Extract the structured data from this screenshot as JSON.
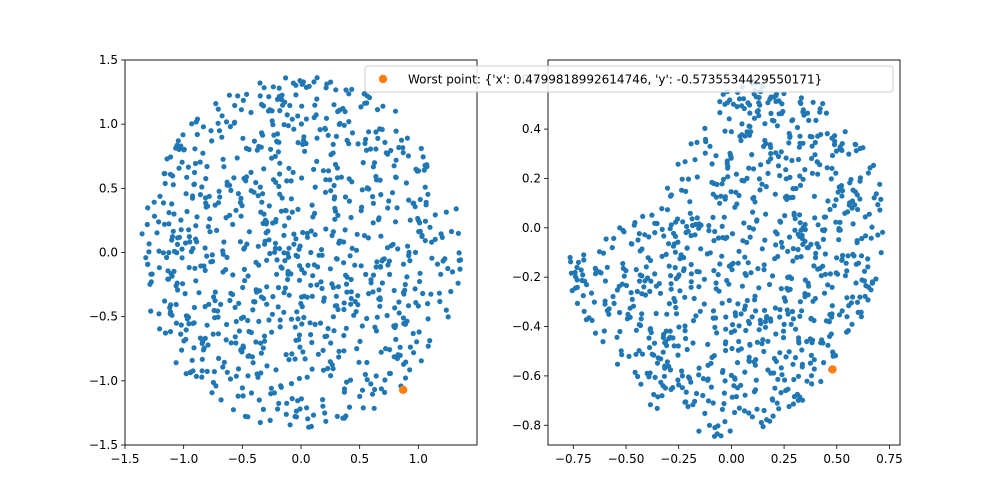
{
  "chart_data": [
    {
      "type": "scatter",
      "title": "",
      "xlabel": "",
      "ylabel": "",
      "xlim": [
        -1.5,
        1.5
      ],
      "ylim": [
        -1.5,
        1.5
      ],
      "xticks": [
        "-1.5",
        "-1.0",
        "-0.5",
        "0.0",
        "0.5",
        "1.0"
      ],
      "yticks": [
        "-1.5",
        "-1.0",
        "-0.5",
        "0.0",
        "0.5",
        "1.0",
        "1.5"
      ],
      "grid": false,
      "series": [
        {
          "shape": "disk",
          "radius": 1.37,
          "count": 900,
          "color": "#1f77b4",
          "description": "approximately uniform random cloud filling a disk of radius ~1.37 centered at origin"
        },
        {
          "points": [
            [
              0.87,
              -1.07
            ]
          ],
          "color": "#ff7f0e"
        }
      ]
    },
    {
      "type": "scatter",
      "title": "",
      "xlabel": "",
      "ylabel": "",
      "xlim": [
        -0.87,
        0.8
      ],
      "ylim": [
        -0.88,
        0.68
      ],
      "xticks": [
        "-0.75",
        "-0.50",
        "-0.25",
        "0.00",
        "0.25",
        "0.50",
        "0.75"
      ],
      "yticks": [
        "-0.8",
        "-0.6",
        "-0.4",
        "-0.2",
        "0.0",
        "0.2",
        "0.4",
        "0.6"
      ],
      "grid": false,
      "series": [
        {
          "shape": "blob",
          "count": 900,
          "color": "#1f77b4"
        },
        {
          "name": "Worst point: {'x': 0.4799818992614746, 'y': -0.5735534429550171}",
          "points": [
            [
              0.4799818992614746,
              -0.5735534429550171
            ]
          ],
          "color": "#ff7f0e"
        }
      ],
      "legend": {
        "position": "top-left",
        "label": "Worst point: {'x': 0.4799818992614746, 'y': -0.5735534429550171}"
      }
    }
  ]
}
